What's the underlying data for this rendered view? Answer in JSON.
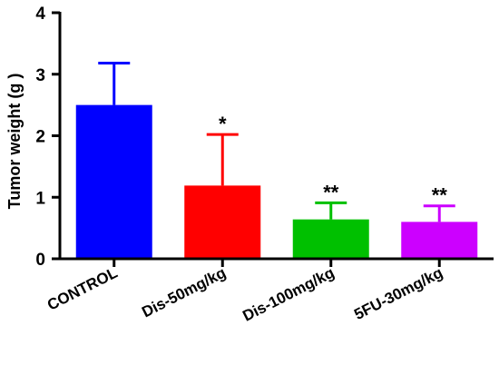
{
  "chart_data": {
    "type": "bar",
    "title": "",
    "xlabel": "",
    "ylabel": "Tumor weight (g )",
    "ylim": [
      0,
      4
    ],
    "yticks": [
      0,
      1,
      2,
      3,
      4
    ],
    "categories": [
      "CONTROL",
      "Dis-50mg/kg",
      "Dis-100mg/kg",
      "5FU-30mg/kg"
    ],
    "values": [
      2.5,
      1.19,
      0.64,
      0.6
    ],
    "error_upper": [
      0.68,
      0.83,
      0.27,
      0.26
    ],
    "significance": [
      "",
      "*",
      "**",
      "**"
    ],
    "colors": [
      "#0000ff",
      "#ff0000",
      "#00c000",
      "#cc00ff"
    ],
    "grid": false,
    "legend": "none"
  }
}
